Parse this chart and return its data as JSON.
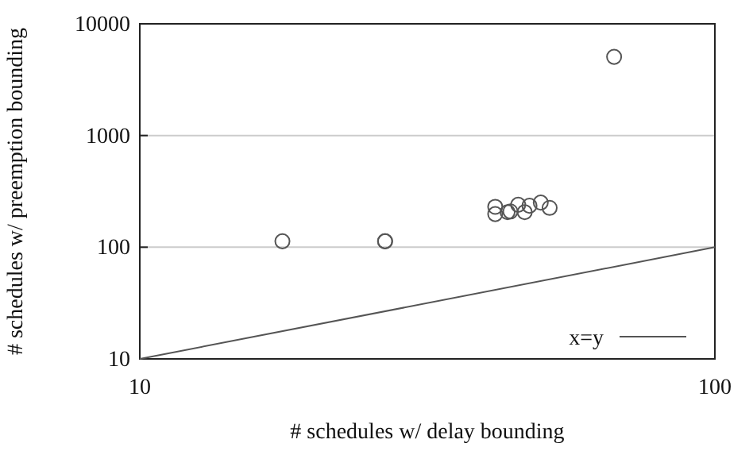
{
  "chart_data": {
    "type": "scatter",
    "xlabel": "# schedules w/ delay bounding",
    "ylabel": "# schedules w/ preemption bounding",
    "log": "xy",
    "xlim": [
      10,
      100
    ],
    "ylim": [
      10,
      10000
    ],
    "xticks": [
      10,
      100
    ],
    "yticks": [
      10,
      100,
      1000,
      10000
    ],
    "grid": "y",
    "legend": "bottom right",
    "marker": "circle",
    "series": [
      {
        "color": "#555555",
        "x": [
          17.7,
          26.7,
          26.7,
          41.5,
          41.5,
          43.6,
          44.1,
          45.5,
          46.7,
          47.6,
          49.8,
          51.6,
          66.8
        ],
        "values": [
          113,
          113,
          113,
          230,
          198,
          206,
          209,
          240,
          206,
          235,
          251,
          225,
          5060
        ]
      },
      {
        "name": "x=y",
        "type": "line",
        "color": "#555555",
        "line_style": "solid",
        "marker": "none",
        "x": [
          10,
          100
        ],
        "values": [
          10,
          100
        ]
      }
    ]
  }
}
